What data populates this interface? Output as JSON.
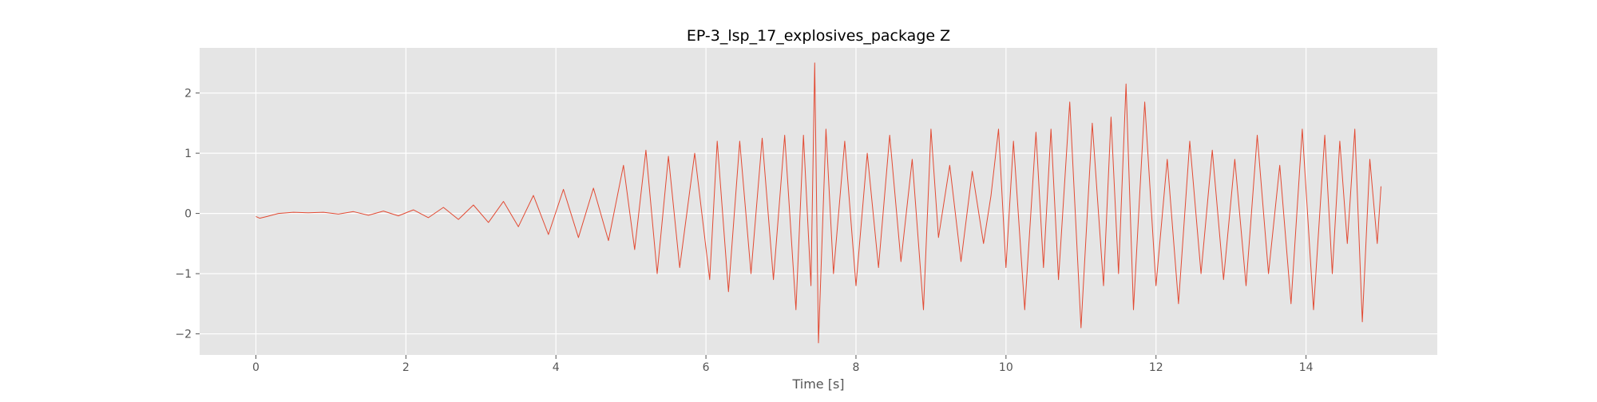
{
  "chart_data": {
    "type": "line",
    "title": "EP-3_lsp_17_explosives_package Z",
    "xlabel": "Time [s]",
    "ylabel": "",
    "xlim": [
      -0.75,
      15.75
    ],
    "ylim": [
      -2.35,
      2.75
    ],
    "xticks": [
      0,
      2,
      4,
      6,
      8,
      10,
      12,
      14
    ],
    "yticks": [
      -2,
      -1,
      0,
      1,
      2
    ],
    "xtick_labels": [
      "0",
      "2",
      "4",
      "6",
      "8",
      "10",
      "12",
      "14"
    ],
    "ytick_labels": [
      "−2",
      "−1",
      "0",
      "1",
      "2"
    ],
    "grid": true,
    "background": "#E5E5E5",
    "line_color": "#E24A33",
    "series": [
      {
        "x": [
          0.0,
          0.05,
          0.15,
          0.3,
          0.5,
          0.7,
          0.9,
          1.1,
          1.3,
          1.5,
          1.7,
          1.9,
          2.1,
          2.3,
          2.5,
          2.7,
          2.9,
          3.1,
          3.3,
          3.5,
          3.7,
          3.9,
          4.1,
          4.3,
          4.5,
          4.7,
          4.9,
          5.05,
          5.2,
          5.35,
          5.5,
          5.65,
          5.85,
          6.05,
          6.15,
          6.3,
          6.45,
          6.6,
          6.75,
          6.9,
          7.05,
          7.2,
          7.3,
          7.4,
          7.45,
          7.5,
          7.6,
          7.7,
          7.85,
          8.0,
          8.15,
          8.3,
          8.45,
          8.6,
          8.75,
          8.9,
          9.0,
          9.1,
          9.25,
          9.4,
          9.55,
          9.7,
          9.8,
          9.9,
          10.0,
          10.1,
          10.25,
          10.4,
          10.5,
          10.6,
          10.7,
          10.85,
          11.0,
          11.15,
          11.3,
          11.4,
          11.5,
          11.6,
          11.7,
          11.85,
          12.0,
          12.15,
          12.3,
          12.45,
          12.6,
          12.75,
          12.9,
          13.05,
          13.2,
          13.35,
          13.5,
          13.65,
          13.8,
          13.95,
          14.1,
          14.25,
          14.35,
          14.45,
          14.55,
          14.65,
          14.75,
          14.85,
          14.95,
          15.0
        ],
        "y": [
          -0.05,
          -0.08,
          -0.05,
          0.0,
          0.02,
          0.01,
          0.02,
          -0.01,
          0.03,
          -0.03,
          0.04,
          -0.04,
          0.06,
          -0.07,
          0.1,
          -0.1,
          0.14,
          -0.15,
          0.2,
          -0.22,
          0.3,
          -0.35,
          0.4,
          -0.4,
          0.42,
          -0.45,
          0.8,
          -0.6,
          1.05,
          -1.0,
          0.95,
          -0.9,
          1.0,
          -1.1,
          1.2,
          -1.3,
          1.2,
          -1.0,
          1.25,
          -1.1,
          1.3,
          -1.6,
          1.3,
          -1.2,
          2.5,
          -2.15,
          1.4,
          -1.0,
          1.2,
          -1.2,
          1.0,
          -0.9,
          1.3,
          -0.8,
          0.9,
          -1.6,
          1.4,
          -0.4,
          0.8,
          -0.8,
          0.7,
          -0.5,
          0.3,
          1.4,
          -0.9,
          1.2,
          -1.6,
          1.35,
          -0.9,
          1.4,
          -1.1,
          1.85,
          -1.9,
          1.5,
          -1.2,
          1.6,
          -1.0,
          2.15,
          -1.6,
          1.85,
          -1.2,
          0.9,
          -1.5,
          1.2,
          -1.0,
          1.05,
          -1.1,
          0.9,
          -1.2,
          1.3,
          -1.0,
          0.8,
          -1.5,
          1.4,
          -1.6,
          1.3,
          -1.0,
          1.2,
          -0.5,
          1.4,
          -1.8,
          0.9,
          -0.5,
          0.45
        ]
      }
    ]
  }
}
